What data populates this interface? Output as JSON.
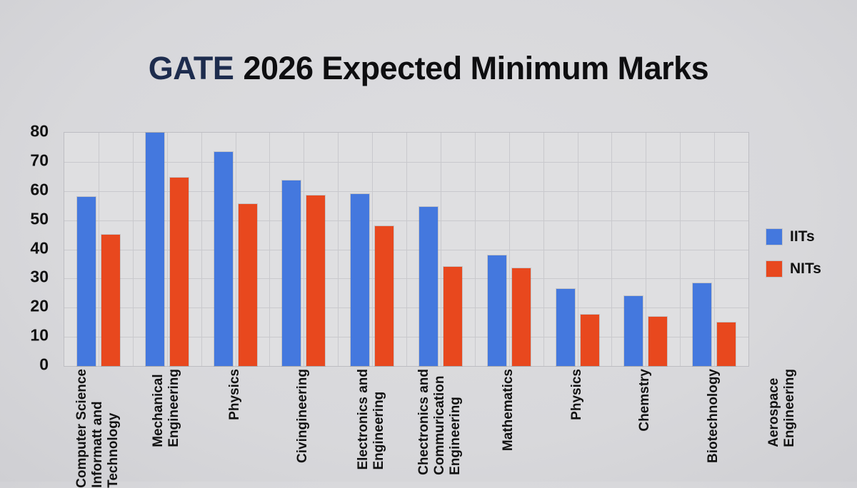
{
  "title": {
    "brand": "GATE",
    "rest": "2026 Expected Minimum Marks"
  },
  "legend": [
    {
      "label": "IITs",
      "color": "#4478de"
    },
    {
      "label": "NITs",
      "color": "#e8481e"
    }
  ],
  "chart_data": {
    "type": "bar",
    "title": "GATE 2026 Expected Minimum Marks",
    "categories": [
      "Computer Science Informatt and Technology",
      "Mechanical Engineering",
      "Physics",
      "Civingineering",
      "Electronics and Engineering",
      "Chectronics and Commurication Engineering",
      "Mathematics",
      "Physics",
      "Chemstry",
      "Biotechnology",
      "Aerospace Engineering"
    ],
    "category_lines": [
      [
        "Computer Science",
        "Informatt and",
        "Technology"
      ],
      [
        "Mechanical",
        "Engineering"
      ],
      [
        "Physics"
      ],
      [
        "Civingineering"
      ],
      [
        "Electronics and",
        "Engineering"
      ],
      [
        "Chectronics and",
        "Commurication",
        "Engineering"
      ],
      [
        "Mathematics"
      ],
      [
        "Physics"
      ],
      [
        "Chemstry"
      ],
      [
        "Biotechnology"
      ],
      [
        "Aerospace",
        "Engineering"
      ]
    ],
    "series": [
      {
        "name": "IITs",
        "color": "#4478de",
        "values": [
          58,
          80,
          73.5,
          63.5,
          59,
          54.5,
          38,
          26.5,
          24,
          28.5,
          null
        ]
      },
      {
        "name": "NITs",
        "color": "#e8481e",
        "values": [
          45,
          64.5,
          55.5,
          58.5,
          48,
          34,
          33.5,
          17.5,
          17,
          15,
          null
        ]
      }
    ],
    "xlabel": "",
    "ylabel": "",
    "ylim": [
      0,
      80
    ],
    "yticks": [
      0,
      10,
      20,
      30,
      40,
      50,
      60,
      70,
      80
    ],
    "grid": true,
    "legend_position": "right",
    "note": "Aerospace Engineering bars not visible in plot area"
  },
  "colors": {
    "background": "#d8d8db",
    "plot_background": "#dfdfe1",
    "gridline": "#c9c9cd",
    "title_brand": "#1d2c4e",
    "title_text": "#0e0e10"
  }
}
